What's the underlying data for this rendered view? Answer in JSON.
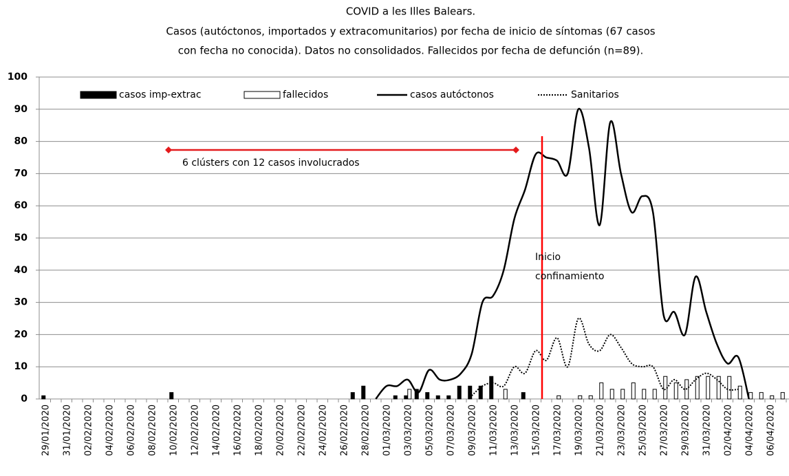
{
  "chart_data": {
    "type": "combo",
    "title": "COVID a les Illes Balears.",
    "subtitle": [
      "Casos (autóctonos, importados y extracomunitarios)  por fecha de inicio de síntomas (67 casos",
      "con fecha no conocida). Datos no consolidados. Fallecidos por fecha de defunción (n=89)."
    ],
    "annotations": [
      "6 clústers con 12 casos involucrados",
      "Inicio",
      "confinamiento"
    ],
    "categories": [
      "29/01/2020",
      null,
      "31/01/2020",
      null,
      "02/02/2020",
      null,
      "04/02/2020",
      null,
      "06/02/2020",
      null,
      "08/02/2020",
      null,
      "10/02/2020",
      null,
      "12/02/2020",
      null,
      "14/02/2020",
      null,
      "16/02/2020",
      null,
      "18/02/2020",
      null,
      "20/02/2020",
      null,
      "22/02/2020",
      null,
      "24/02/2020",
      null,
      "26/02/2020",
      null,
      "28/02/2020",
      null,
      "01/03/2020",
      null,
      "03/03/2020",
      null,
      "05/03/2020",
      null,
      "07/03/2020",
      null,
      "09/03/2020",
      null,
      "11/03/2020",
      null,
      "13/03/2020",
      null,
      "15/03/2020",
      null,
      "17/03/2020",
      null,
      "19/03/2020",
      null,
      "21/03/2020",
      null,
      "23/03/2020",
      null,
      "25/03/2020",
      null,
      "27/03/2020",
      null,
      "29/03/2020",
      null,
      "31/03/2020",
      null,
      "02/04/2020",
      null,
      "04/04/2020",
      null,
      "06/04/2020",
      null
    ],
    "series": [
      {
        "name": "casos imp-extrac",
        "kind": "bar",
        "color": "#000000",
        "values": [
          1,
          0,
          0,
          0,
          0,
          0,
          0,
          0,
          0,
          0,
          0,
          0,
          2,
          0,
          0,
          0,
          0,
          0,
          0,
          0,
          0,
          0,
          0,
          0,
          0,
          0,
          0,
          0,
          0,
          2,
          4,
          0,
          0,
          1,
          1,
          3,
          2,
          1,
          1,
          4,
          4,
          4,
          7,
          0,
          0,
          2,
          0,
          0,
          0,
          0,
          0,
          0,
          0,
          0,
          0,
          0,
          0,
          0,
          0,
          0,
          0,
          0,
          0,
          0,
          0,
          0,
          0,
          0,
          0,
          0
        ]
      },
      {
        "name": "fallecidos",
        "kind": "bar",
        "color": "#ffffff",
        "values": [
          0,
          0,
          0,
          0,
          0,
          0,
          0,
          0,
          0,
          0,
          0,
          0,
          0,
          0,
          0,
          0,
          0,
          0,
          0,
          0,
          0,
          0,
          0,
          0,
          0,
          0,
          0,
          0,
          0,
          0,
          0,
          0,
          0,
          0,
          3,
          0,
          0,
          0,
          0,
          0,
          0,
          0,
          0,
          3,
          0,
          0,
          0,
          0,
          1,
          0,
          1,
          1,
          5,
          3,
          3,
          5,
          3,
          3,
          7,
          5,
          6,
          7,
          7,
          7,
          7,
          4,
          2,
          2,
          1,
          2
        ]
      },
      {
        "name": "casos autóctonos",
        "kind": "line",
        "color": "#000000",
        "line_style": "solid",
        "values": [
          null,
          null,
          null,
          null,
          null,
          null,
          null,
          null,
          null,
          null,
          null,
          null,
          null,
          null,
          null,
          null,
          null,
          null,
          null,
          null,
          null,
          null,
          null,
          null,
          null,
          null,
          null,
          null,
          null,
          null,
          null,
          0,
          4,
          4,
          6,
          2,
          9,
          6,
          6,
          8,
          14,
          30,
          32,
          40,
          56,
          65,
          76,
          75,
          74,
          70,
          90,
          78,
          54,
          86,
          70,
          58,
          63,
          58,
          26,
          27,
          20,
          38,
          27,
          17,
          11,
          13,
          0,
          null,
          null,
          null
        ]
      },
      {
        "name": "Sanitarios",
        "kind": "line",
        "color": "#000000",
        "line_style": "dotted",
        "values": [
          null,
          null,
          null,
          null,
          null,
          null,
          null,
          null,
          null,
          null,
          null,
          null,
          null,
          null,
          null,
          null,
          null,
          null,
          null,
          null,
          null,
          null,
          null,
          null,
          null,
          null,
          null,
          null,
          null,
          null,
          null,
          null,
          null,
          null,
          null,
          null,
          null,
          null,
          null,
          null,
          1,
          4,
          5,
          4,
          10,
          8,
          15,
          12,
          19,
          10,
          25,
          17,
          15,
          20,
          16,
          11,
          10,
          10,
          3,
          6,
          3,
          6,
          8,
          6,
          3,
          3,
          null,
          null,
          null,
          null
        ]
      }
    ],
    "ylim": [
      0,
      100
    ],
    "yticks": [
      0,
      10,
      20,
      30,
      40,
      50,
      60,
      70,
      80,
      90,
      100
    ],
    "grid": true,
    "legend": "top"
  }
}
